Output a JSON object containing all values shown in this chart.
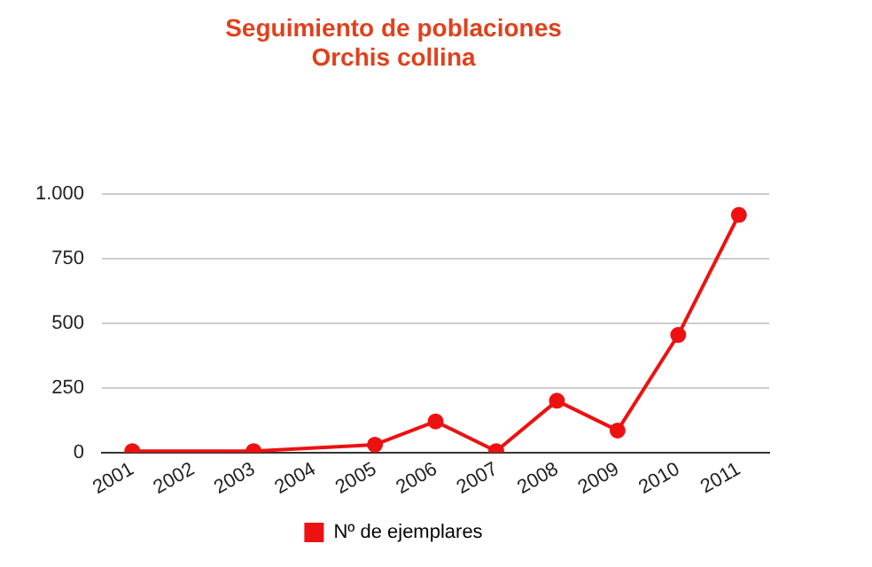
{
  "chart_data": {
    "type": "line",
    "title": "Seguimiento de poblaciones",
    "subtitle": "Orchis collina",
    "x": [
      2001,
      2003,
      2005,
      2006,
      2007,
      2008,
      2009,
      2010,
      2011
    ],
    "series": [
      {
        "name": "Nº de ejemplares",
        "color": "#ee1111",
        "values": [
          5,
          5,
          30,
          120,
          5,
          200,
          85,
          455,
          920
        ]
      }
    ],
    "xlim": [
      2000.5,
      2011.5
    ],
    "xticks": [
      2001,
      2002,
      2003,
      2004,
      2005,
      2006,
      2007,
      2008,
      2009,
      2010,
      2011
    ],
    "ylim": [
      0,
      1000
    ],
    "yticks": [
      0,
      250,
      500,
      750,
      {
        "value": 1000,
        "label": "1.000"
      }
    ],
    "grid": "y",
    "legend": "bottom",
    "marker": "circle",
    "line_style": "solid"
  }
}
